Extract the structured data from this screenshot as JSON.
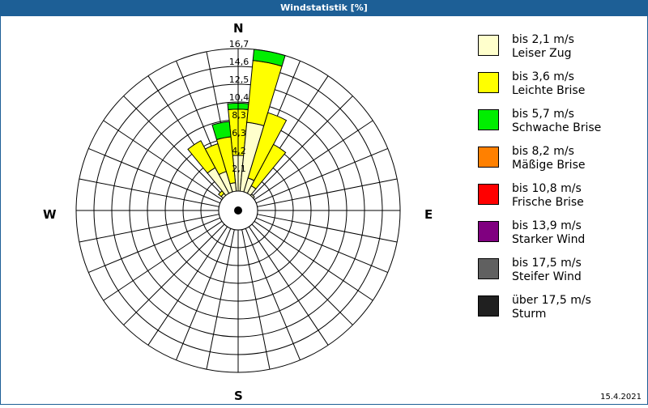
{
  "window": {
    "title": "Windstatistik [%]"
  },
  "footer": {
    "date": "15.4.2021"
  },
  "directions": {
    "n": "N",
    "e": "E",
    "s": "S",
    "w": "W"
  },
  "legend": [
    {
      "range": "bis 2,1 m/s",
      "name": "Leiser Zug",
      "color": "#ffffcc"
    },
    {
      "range": "bis 3,6 m/s",
      "name": "Leichte Brise",
      "color": "#ffff00"
    },
    {
      "range": "bis 5,7 m/s",
      "name": "Schwache Brise",
      "color": "#00ee00"
    },
    {
      "range": "bis 8,2 m/s",
      "name": "Mäßige Brise",
      "color": "#ff8000"
    },
    {
      "range": "bis 10,8 m/s",
      "name": "Frische Brise",
      "color": "#ff0000"
    },
    {
      "range": "bis 13,9 m/s",
      "name": "Starker Wind",
      "color": "#800080"
    },
    {
      "range": "bis 17,5 m/s",
      "name": "Steifer Wind",
      "color": "#606060"
    },
    {
      "range": "über 17,5 m/s",
      "name": "Sturm",
      "color": "#202020"
    }
  ],
  "chart_data": {
    "type": "polar-stacked-bar",
    "title": "Windstatistik [%]",
    "sectors": 32,
    "sector_width_deg": 11.25,
    "radial_ticks": [
      "2,1",
      "4,2",
      "6,3",
      "8,3",
      "10,4",
      "12,5",
      "14,6",
      "16,7"
    ],
    "rmax": 16.7,
    "series_names": [
      "bis 2,1 m/s",
      "bis 3,6 m/s",
      "bis 5,7 m/s",
      "bis 8,2 m/s",
      "bis 10,8 m/s",
      "bis 13,9 m/s",
      "bis 17,5 m/s",
      "über 17,5 m/s"
    ],
    "bars": [
      {
        "dir_deg": 0,
        "values": [
          4.2,
          5.4,
          0.7,
          0,
          0,
          0,
          0,
          0
        ]
      },
      {
        "dir_deg": 11.25,
        "values": [
          8.1,
          7.3,
          1.6,
          0,
          0,
          0,
          0,
          0
        ]
      },
      {
        "dir_deg": 22.5,
        "values": [
          1.7,
          8.0,
          0,
          0,
          0,
          0,
          0,
          0
        ]
      },
      {
        "dir_deg": 33.75,
        "values": [
          1.0,
          5.5,
          0,
          0,
          0,
          0,
          0,
          0
        ]
      },
      {
        "dir_deg": 45,
        "values": [
          0.2,
          0,
          0,
          0,
          0,
          0,
          0,
          0
        ]
      },
      {
        "dir_deg": 315,
        "values": [
          0.3,
          0.4,
          0,
          0,
          0,
          0,
          0,
          0
        ]
      },
      {
        "dir_deg": 326.25,
        "values": [
          3.4,
          3.6,
          0,
          0,
          0,
          0,
          0,
          0
        ]
      },
      {
        "dir_deg": 337.5,
        "values": [
          2.5,
          3.4,
          0,
          0,
          0,
          0,
          0,
          0
        ]
      },
      {
        "dir_deg": 348.75,
        "values": [
          1.0,
          5.4,
          1.8,
          0,
          0,
          0,
          0,
          0
        ]
      }
    ]
  }
}
